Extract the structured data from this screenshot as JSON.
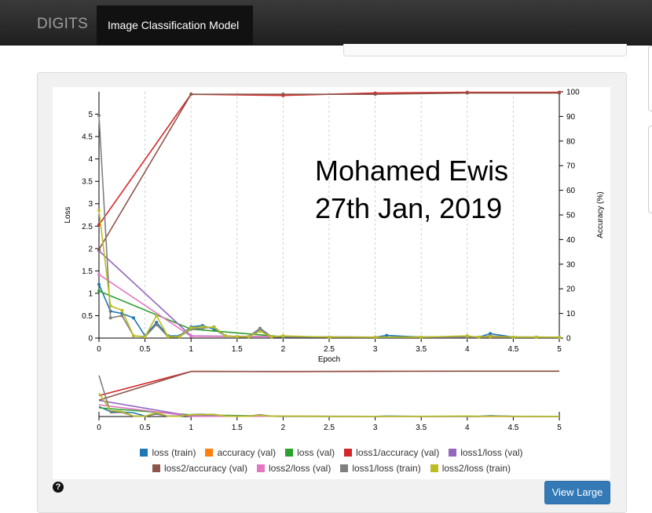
{
  "navbar": {
    "brand": "DIGITS",
    "active_item": "Image Classification Model"
  },
  "annotation": {
    "line1": "Mohamed Ewis",
    "line2": "27th Jan, 2019"
  },
  "controls": {
    "view_large": "View Large",
    "help": "?"
  },
  "colors": {
    "loss_train": "#1f77b4",
    "accuracy_val": "#ff7f0e",
    "loss_val": "#2ca02c",
    "loss1_accuracy_val": "#d62728",
    "loss1_loss_val": "#9467bd",
    "loss2_accuracy_val": "#8c564b",
    "loss2_loss_val": "#e377c2",
    "loss1_loss_train": "#7f7f7f",
    "loss2_loss_train": "#bcbd22"
  },
  "chart_data": {
    "type": "line",
    "xlabel": "Epoch",
    "ylabel": "Loss",
    "y2label": "Accuracy (%)",
    "xlim": [
      0,
      5
    ],
    "ylim": [
      0,
      5.5
    ],
    "y2lim": [
      0,
      100
    ],
    "x_ticks": [
      "0",
      "0.5",
      "1",
      "1.5",
      "2",
      "2.5",
      "3",
      "3.5",
      "4",
      "4.5",
      "5"
    ],
    "y_ticks": [
      "0",
      "0.5",
      "1",
      "1.5",
      "2",
      "2.5",
      "3",
      "3.5",
      "4",
      "4.5",
      "5"
    ],
    "y2_ticks": [
      "0",
      "10",
      "20",
      "30",
      "40",
      "50",
      "60",
      "70",
      "80",
      "90",
      "100"
    ],
    "grid": "vertical dashed",
    "legend_position": "bottom",
    "series": [
      {
        "name": "loss (train)",
        "axis": "y",
        "color": "#1f77b4",
        "x": [
          0,
          0.125,
          0.25,
          0.375,
          0.5,
          0.625,
          0.75,
          0.875,
          1,
          1.125,
          1.25,
          1.375,
          1.5,
          1.625,
          1.75,
          1.875,
          2,
          2.5,
          3,
          3.125,
          3.5,
          4,
          4.125,
          4.25,
          4.5,
          4.75,
          5
        ],
        "y": [
          1.2,
          0.6,
          0.55,
          0.45,
          0.05,
          0.35,
          0.05,
          0.05,
          0.25,
          0.28,
          0.2,
          0.05,
          0.03,
          0.03,
          0.2,
          0.03,
          0.02,
          0.02,
          0.02,
          0.06,
          0.02,
          0.02,
          0.02,
          0.1,
          0.02,
          0.02,
          0.02
        ]
      },
      {
        "name": "accuracy (val)",
        "axis": "y2",
        "color": "#ff7f0e",
        "x": [],
        "y": []
      },
      {
        "name": "loss (val)",
        "axis": "y",
        "color": "#2ca02c",
        "x": [
          0,
          1,
          2,
          3,
          4,
          5
        ],
        "y": [
          1.05,
          0.2,
          0.03,
          0.02,
          0.03,
          0.02
        ]
      },
      {
        "name": "loss1/accuracy (val)",
        "axis": "y2",
        "color": "#d62728",
        "x": [
          0,
          1,
          2,
          3,
          4,
          5
        ],
        "y": [
          46,
          99,
          98.5,
          99.5,
          99.8,
          99.8
        ]
      },
      {
        "name": "loss1/loss (val)",
        "axis": "y",
        "color": "#9467bd",
        "x": [
          0,
          1,
          2,
          3,
          4,
          5
        ],
        "y": [
          1.95,
          0.05,
          0.03,
          0.02,
          0.02,
          0.02
        ]
      },
      {
        "name": "loss2/accuracy (val)",
        "axis": "y2",
        "color": "#8c564b",
        "x": [
          0,
          1,
          2,
          3,
          4,
          5
        ],
        "y": [
          36,
          99,
          99,
          99,
          99.5,
          99.5
        ]
      },
      {
        "name": "loss2/loss (val)",
        "axis": "y",
        "color": "#e377c2",
        "x": [
          0,
          1,
          2,
          3,
          4,
          5
        ],
        "y": [
          1.42,
          0.04,
          0.03,
          0.02,
          0.02,
          0.02
        ]
      },
      {
        "name": "loss1/loss (train)",
        "axis": "y",
        "color": "#7f7f7f",
        "x": [
          0,
          0.125,
          0.25,
          0.375,
          0.5,
          0.625,
          0.75,
          0.875,
          1,
          1.125,
          1.25,
          1.375,
          1.5,
          1.625,
          1.75,
          1.875,
          2,
          2.5,
          3,
          3.5,
          4,
          4.125,
          4.25,
          4.5,
          4.75,
          5
        ],
        "y": [
          4.97,
          0.45,
          0.5,
          0.05,
          0.03,
          0.3,
          0.03,
          0.03,
          0.2,
          0.22,
          0.25,
          0.05,
          0.03,
          0.03,
          0.22,
          0.03,
          0.02,
          0.02,
          0.02,
          0.02,
          0.02,
          0.02,
          0.05,
          0.02,
          0.02,
          0.02
        ]
      },
      {
        "name": "loss2/loss (train)",
        "axis": "y",
        "color": "#bcbd22",
        "x": [
          0,
          0.125,
          0.25,
          0.375,
          0.5,
          0.625,
          0.75,
          0.875,
          1,
          1.125,
          1.25,
          1.375,
          1.5,
          1.625,
          1.75,
          1.875,
          2,
          2.5,
          3,
          3.5,
          4,
          4.125,
          4.25,
          4.5,
          4.75,
          5
        ],
        "y": [
          2.85,
          0.72,
          0.62,
          0.05,
          0.03,
          0.5,
          0.03,
          0.03,
          0.23,
          0.25,
          0.24,
          0.05,
          0.03,
          0.03,
          0.15,
          0.03,
          0.05,
          0.02,
          0.02,
          0.02,
          0.05,
          0.02,
          0.03,
          0.02,
          0.02,
          0.02
        ]
      }
    ]
  }
}
